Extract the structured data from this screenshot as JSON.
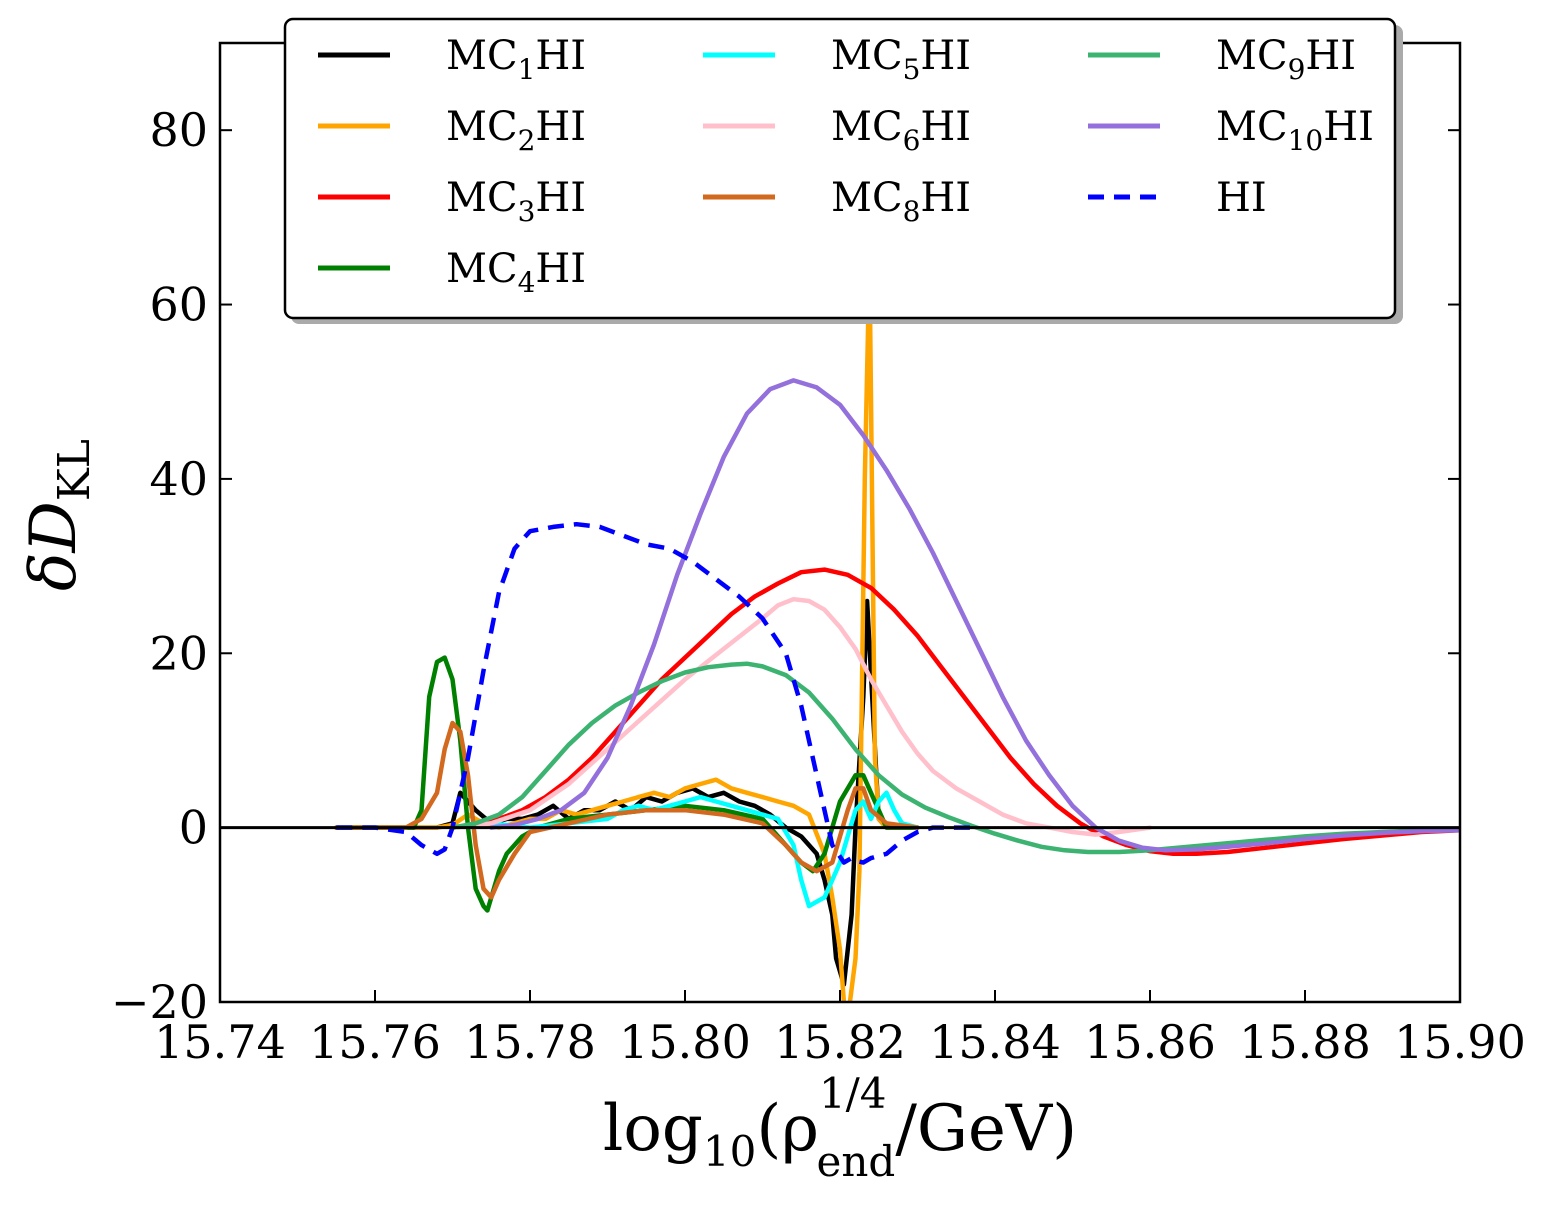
{
  "chart_data": {
    "type": "line",
    "xlabel": "log10(ρ_end^(1/4)/GeV)",
    "xlabel_parts": {
      "main": "log",
      "sub": "10",
      "open": "(ρ",
      "sup": "1/4",
      "subscript": "end",
      "close": "/GeV)"
    },
    "ylabel": "δD_KL",
    "ylabel_parts": {
      "delta": "δ",
      "main": "D",
      "sub": "KL"
    },
    "xlim": [
      15.74,
      15.9
    ],
    "ylim": [
      -20,
      90
    ],
    "xticks": [
      "15.74",
      "15.76",
      "15.78",
      "15.80",
      "15.82",
      "15.84",
      "15.86",
      "15.88",
      "15.90"
    ],
    "yticks": [
      "−20",
      "0",
      "20",
      "40",
      "60",
      "80"
    ],
    "xtick_values": [
      15.74,
      15.76,
      15.78,
      15.8,
      15.82,
      15.84,
      15.86,
      15.88,
      15.9
    ],
    "ytick_values": [
      -20,
      0,
      20,
      40,
      60,
      80
    ],
    "zero_line": 0,
    "legend_position": "top-center",
    "series": [
      {
        "name": "MC1HI",
        "label_main": "MC",
        "label_sub": "1",
        "label_tail": "HI",
        "color": "#000000",
        "dash": "solid",
        "x": [
          15.755,
          15.768,
          15.77,
          15.771,
          15.773,
          15.775,
          15.777,
          15.779,
          15.781,
          15.783,
          15.785,
          15.787,
          15.789,
          15.791,
          15.793,
          15.795,
          15.797,
          15.799,
          15.801,
          15.803,
          15.805,
          15.807,
          15.809,
          15.811,
          15.813,
          15.815,
          15.817,
          15.818,
          15.819,
          15.8195,
          15.8205,
          15.8215,
          15.822,
          15.823,
          15.8235,
          15.825,
          15.826,
          15.83
        ],
        "y": [
          0,
          0,
          0.5,
          4,
          2,
          0.5,
          1,
          1,
          1.5,
          2.5,
          1,
          2,
          2,
          3,
          2,
          3.5,
          3,
          4,
          4.5,
          3.5,
          4,
          3,
          2.5,
          1.5,
          0,
          -1,
          -3,
          -6,
          -10,
          -15,
          -18,
          -10,
          0,
          15,
          26,
          1,
          0,
          0
        ]
      },
      {
        "name": "MC2HI",
        "label_main": "MC",
        "label_sub": "2",
        "label_tail": "HI",
        "color": "#FFA500",
        "dash": "solid",
        "x": [
          15.755,
          15.768,
          15.77,
          15.772,
          15.774,
          15.776,
          15.778,
          15.78,
          15.782,
          15.784,
          15.786,
          15.788,
          15.79,
          15.792,
          15.794,
          15.796,
          15.798,
          15.8,
          15.802,
          15.804,
          15.806,
          15.808,
          15.81,
          15.812,
          15.814,
          15.816,
          15.818,
          15.819,
          15.82,
          15.8205,
          15.821,
          15.822,
          15.8225,
          15.8232,
          15.8238,
          15.8245,
          15.825,
          15.826,
          15.83
        ],
        "y": [
          0,
          0,
          0.3,
          1.5,
          0.5,
          0,
          0.5,
          1,
          1,
          2,
          1.5,
          2,
          2.5,
          3,
          3.5,
          4,
          3.5,
          4.5,
          5,
          5.5,
          4.5,
          4,
          3.5,
          3,
          2.5,
          1.5,
          -3,
          -8,
          -14,
          -20,
          -22,
          -15,
          -5,
          40,
          65,
          8,
          1,
          0,
          0
        ]
      },
      {
        "name": "MC3HI",
        "label_main": "MC",
        "label_sub": "3",
        "label_tail": "HI",
        "color": "#FF0000",
        "dash": "solid",
        "x": [
          15.77,
          15.773,
          15.776,
          15.779,
          15.782,
          15.785,
          15.788,
          15.791,
          15.794,
          15.797,
          15.8,
          15.803,
          15.806,
          15.809,
          15.812,
          15.815,
          15.818,
          15.821,
          15.824,
          15.827,
          15.83,
          15.833,
          15.836,
          15.839,
          15.842,
          15.845,
          15.848,
          15.851,
          15.854,
          15.857,
          15.86,
          15.863,
          15.866,
          15.87,
          15.875,
          15.88,
          15.885,
          15.89,
          15.895,
          15.9
        ],
        "y": [
          0,
          0.3,
          1,
          2,
          3.5,
          5.5,
          8,
          11,
          14,
          17,
          19.5,
          22,
          24.5,
          26.5,
          28,
          29.3,
          29.6,
          29,
          27.5,
          25,
          22,
          18.5,
          15,
          11.5,
          8,
          5,
          2.5,
          0.5,
          -1,
          -2,
          -2.7,
          -3,
          -3,
          -2.8,
          -2.3,
          -1.8,
          -1.3,
          -0.9,
          -0.5,
          -0.3
        ]
      },
      {
        "name": "MC4HI",
        "label_main": "MC",
        "label_sub": "4",
        "label_tail": "HI",
        "color": "#008000",
        "dash": "solid",
        "x": [
          15.755,
          15.765,
          15.766,
          15.767,
          15.768,
          15.769,
          15.77,
          15.771,
          15.772,
          15.773,
          15.774,
          15.7745,
          15.775,
          15.776,
          15.777,
          15.779,
          15.781,
          15.785,
          15.79,
          15.795,
          15.8,
          15.805,
          15.81,
          15.815,
          15.8165,
          15.818,
          15.82,
          15.822,
          15.823,
          15.824,
          15.826,
          15.83
        ],
        "y": [
          0,
          0,
          2,
          15,
          19,
          19.5,
          17,
          10,
          0,
          -7,
          -9,
          -9.5,
          -8,
          -5,
          -3,
          -1,
          0,
          1,
          1.5,
          2,
          2.5,
          2,
          1,
          -4,
          -5,
          -3,
          3,
          6,
          6,
          4,
          0,
          0
        ]
      },
      {
        "name": "MC5HI",
        "label_main": "MC",
        "label_sub": "5",
        "label_tail": "HI",
        "color": "#00FFFF",
        "dash": "solid",
        "x": [
          15.77,
          15.775,
          15.78,
          15.785,
          15.79,
          15.792,
          15.794,
          15.796,
          15.798,
          15.8,
          15.802,
          15.804,
          15.806,
          15.808,
          15.81,
          15.812,
          15.814,
          15.815,
          15.816,
          15.817,
          15.818,
          15.819,
          15.82,
          15.821,
          15.822,
          15.823,
          15.8235,
          15.824,
          15.825,
          15.826,
          15.827,
          15.828,
          15.83
        ],
        "y": [
          0,
          0.5,
          0,
          0.5,
          1,
          2,
          2.5,
          2,
          2.5,
          3,
          3.5,
          3,
          2.5,
          2,
          1.5,
          1,
          -2,
          -6,
          -9,
          -8.5,
          -8,
          -6,
          -4,
          -1,
          2,
          3,
          2,
          1,
          3,
          4,
          2,
          0.5,
          0
        ]
      },
      {
        "name": "MC6HI",
        "label_main": "MC",
        "label_sub": "6",
        "label_tail": "HI",
        "color": "#FFC0CB",
        "dash": "solid",
        "x": [
          15.77,
          15.775,
          15.78,
          15.785,
          15.79,
          15.795,
          15.8,
          15.805,
          15.81,
          15.812,
          15.814,
          15.816,
          15.818,
          15.82,
          15.822,
          15.824,
          15.826,
          15.828,
          15.83,
          15.832,
          15.835,
          15.838,
          15.841,
          15.844,
          15.847,
          15.85,
          15.853,
          15.856,
          15.86
        ],
        "y": [
          0,
          0.5,
          2,
          5,
          9,
          13,
          17,
          20.5,
          24,
          25.5,
          26.2,
          26,
          25,
          23,
          20.5,
          17,
          14,
          11,
          8.5,
          6.5,
          4.5,
          3,
          1.5,
          0.5,
          0,
          -0.5,
          -0.8,
          -0.5,
          0
        ]
      },
      {
        "name": "MC8HI",
        "label_main": "MC",
        "label_sub": "8",
        "label_tail": "HI",
        "color": "#D2691E",
        "dash": "solid",
        "x": [
          15.755,
          15.764,
          15.766,
          15.768,
          15.769,
          15.77,
          15.771,
          15.772,
          15.773,
          15.774,
          15.775,
          15.776,
          15.778,
          15.78,
          15.785,
          15.79,
          15.795,
          15.8,
          15.805,
          15.81,
          15.813,
          15.815,
          15.817,
          15.819,
          15.82,
          15.821,
          15.822,
          15.823,
          15.824,
          15.826,
          15.83
        ],
        "y": [
          0,
          0,
          1,
          4,
          9,
          12,
          11,
          6,
          -2,
          -7,
          -8,
          -6,
          -3,
          -0.5,
          0.5,
          1.5,
          2,
          2,
          1.5,
          0.5,
          -2,
          -4,
          -5,
          -4,
          -1,
          2,
          4.5,
          4.5,
          2,
          0.5,
          0
        ]
      },
      {
        "name": "MC9HI",
        "label_main": "MC",
        "label_sub": "9",
        "label_tail": "HI",
        "color": "#3CB371",
        "dash": "solid",
        "x": [
          15.77,
          15.773,
          15.776,
          15.779,
          15.782,
          15.785,
          15.788,
          15.791,
          15.794,
          15.797,
          15.8,
          15.803,
          15.806,
          15.808,
          15.81,
          15.813,
          15.816,
          15.819,
          15.822,
          15.825,
          15.828,
          15.831,
          15.834,
          15.837,
          15.84,
          15.843,
          15.846,
          15.849,
          15.852,
          15.856,
          15.86,
          15.865,
          15.87,
          15.875,
          15.88,
          15.885,
          15.89,
          15.895,
          15.9
        ],
        "y": [
          0,
          0.5,
          1.5,
          3.5,
          6.5,
          9.5,
          12,
          14,
          15.5,
          16.8,
          17.8,
          18.4,
          18.7,
          18.8,
          18.5,
          17.5,
          15.5,
          12.5,
          9,
          6,
          3.8,
          2.3,
          1.2,
          0.2,
          -0.7,
          -1.5,
          -2.2,
          -2.6,
          -2.8,
          -2.8,
          -2.6,
          -2.2,
          -1.8,
          -1.4,
          -1,
          -0.7,
          -0.5,
          -0.3,
          -0.2
        ]
      },
      {
        "name": "MC10HI",
        "label_main": "MC",
        "label_sub": "10",
        "label_tail": "HI",
        "color": "#9370DB",
        "dash": "solid",
        "x": [
          15.775,
          15.778,
          15.781,
          15.784,
          15.787,
          15.79,
          15.793,
          15.796,
          15.799,
          15.802,
          15.805,
          15.808,
          15.811,
          15.814,
          15.817,
          15.82,
          15.823,
          15.826,
          15.829,
          15.832,
          15.835,
          15.838,
          15.841,
          15.844,
          15.847,
          15.85,
          15.853,
          15.856,
          15.859,
          15.862,
          15.866,
          15.87,
          15.875,
          15.88,
          15.885,
          15.89,
          15.895,
          15.9
        ],
        "y": [
          0,
          0.3,
          1,
          2,
          4,
          8,
          14,
          21,
          29,
          36,
          42.5,
          47.5,
          50.3,
          51.3,
          50.5,
          48.5,
          45,
          41,
          36.5,
          31.5,
          26,
          20.5,
          15,
          10,
          6,
          2.5,
          0,
          -1.5,
          -2.3,
          -2.6,
          -2.5,
          -2.2,
          -1.8,
          -1.3,
          -0.9,
          -0.6,
          -0.4,
          -0.3
        ]
      },
      {
        "name": "HI",
        "label_main": "HI",
        "label_sub": "",
        "label_tail": "",
        "color": "#0000FF",
        "dash": "dashed",
        "x": [
          15.755,
          15.76,
          15.764,
          15.766,
          15.768,
          15.769,
          15.77,
          15.772,
          15.774,
          15.776,
          15.778,
          15.78,
          15.783,
          15.786,
          15.789,
          15.792,
          15.795,
          15.798,
          15.801,
          15.804,
          15.807,
          15.81,
          15.813,
          15.815,
          15.817,
          15.819,
          15.8205,
          15.8215,
          15.822,
          15.823,
          15.824,
          15.826,
          15.828,
          15.83,
          15.832,
          15.835,
          15.838
        ],
        "y": [
          0,
          0,
          -0.5,
          -2,
          -3,
          -2.5,
          0,
          8,
          18,
          27,
          32,
          34,
          34.5,
          34.8,
          34.5,
          33.5,
          32.5,
          32,
          30.5,
          28.5,
          26.5,
          24,
          20,
          14,
          6,
          -2,
          -4,
          -3.5,
          -3.8,
          -4,
          -3.5,
          -3,
          -1.5,
          -0.5,
          0,
          0,
          0
        ]
      }
    ]
  }
}
